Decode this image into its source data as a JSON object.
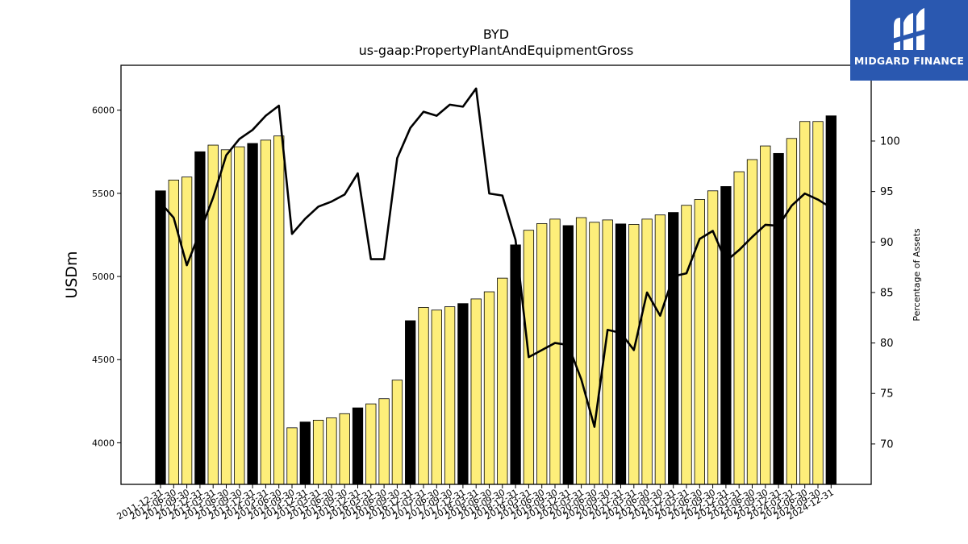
{
  "brand": {
    "name": "MIDGARD FINANCE",
    "bg_color": "#2a58b0",
    "icon": "midgard-logo-icon"
  },
  "chart_data": {
    "type": "bar",
    "title": "BYD",
    "subtitle": "us-gaap:PropertyPlantAndEquipmentGross",
    "ylabel": "USDm",
    "y2label": "Percentage of Assets",
    "ylim": [
      3750,
      6270
    ],
    "y2lim": [
      66.0,
      107.5
    ],
    "yticks": [
      4000,
      4500,
      5000,
      5500,
      6000
    ],
    "y2ticks": [
      70,
      75,
      80,
      85,
      90,
      95,
      100
    ],
    "colors": {
      "annual_bar": "#000000",
      "quarter_bar": "#fdee7a",
      "line": "#000000"
    },
    "categories": [
      "2011-12-31",
      "2012-06-30",
      "2012-09-30",
      "2012-12-31",
      "2013-03-31",
      "2013-06-30",
      "2013-09-30",
      "2013-12-31",
      "2014-03-31",
      "2014-06-30",
      "2014-09-30",
      "2014-12-31",
      "2015-03-31",
      "2015-06-30",
      "2015-09-30",
      "2015-12-31",
      "2016-03-31",
      "2016-06-30",
      "2016-09-30",
      "2016-12-31",
      "2017-03-31",
      "2017-06-30",
      "2017-09-30",
      "2017-12-31",
      "2018-03-31",
      "2018-06-30",
      "2018-09-30",
      "2018-12-31",
      "2019-03-31",
      "2019-06-30",
      "2019-09-30",
      "2019-12-31",
      "2020-03-31",
      "2020-06-30",
      "2020-09-30",
      "2020-12-31",
      "2021-03-31",
      "2021-06-30",
      "2021-09-30",
      "2021-12-31",
      "2022-03-31",
      "2022-06-30",
      "2022-09-30",
      "2022-12-31",
      "2023-03-31",
      "2023-06-30",
      "2023-09-30",
      "2023-12-31",
      "2024-03-31",
      "2024-06-30",
      "2024-09-30",
      "2024-12-31"
    ],
    "series": [
      {
        "type": "bar",
        "values": [
          5515,
          5580,
          5598,
          5750,
          5790,
          5762,
          5780,
          5800,
          5820,
          5845,
          4090,
          4125,
          4136,
          4150,
          4175,
          4210,
          4234,
          4265,
          4377,
          4734,
          4814,
          4798,
          4818,
          4837,
          4865,
          4908,
          4990,
          5190,
          5278,
          5318,
          5345,
          5306,
          5354,
          5326,
          5340,
          5316,
          5313,
          5345,
          5370,
          5385,
          5428,
          5463,
          5515,
          5541,
          5630,
          5703,
          5785,
          5740,
          5830,
          5932,
          5932,
          5966
        ],
        "annual": [
          true,
          false,
          false,
          true,
          false,
          false,
          false,
          true,
          false,
          false,
          false,
          true,
          false,
          false,
          false,
          true,
          false,
          false,
          false,
          true,
          false,
          false,
          false,
          true,
          false,
          false,
          false,
          true,
          false,
          false,
          false,
          true,
          false,
          false,
          false,
          true,
          false,
          false,
          false,
          true,
          false,
          false,
          false,
          true,
          false,
          false,
          false,
          true,
          false,
          false,
          false,
          true
        ]
      },
      {
        "type": "line",
        "axis": "right",
        "values": [
          93.9,
          92.4,
          87.7,
          91.0,
          94.4,
          98.6,
          100.2,
          101.1,
          102.5,
          103.5,
          90.8,
          92.3,
          93.5,
          94.0,
          94.7,
          96.8,
          88.3,
          88.3,
          98.3,
          101.3,
          102.9,
          102.5,
          103.6,
          103.4,
          105.2,
          94.8,
          94.6,
          90.2,
          78.6,
          79.3,
          80.0,
          79.8,
          76.4,
          71.7,
          81.3,
          81.0,
          79.3,
          85.0,
          82.7,
          86.6,
          86.9,
          90.3,
          91.1,
          88.1,
          89.2,
          90.5,
          91.7,
          91.6,
          93.6,
          94.8,
          94.2,
          93.4
        ]
      }
    ],
    "grid": false,
    "legend": "none"
  }
}
